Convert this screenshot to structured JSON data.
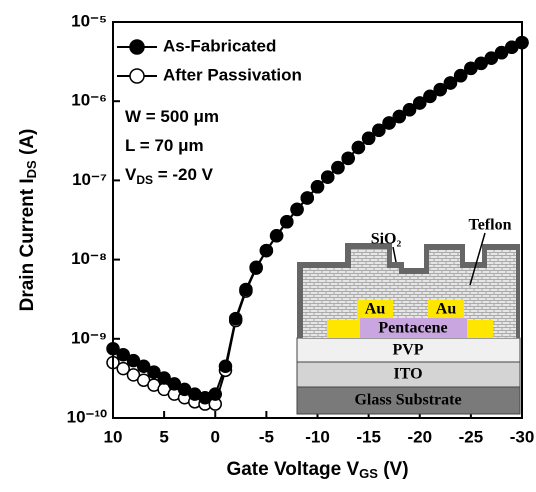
{
  "chart_data": {
    "type": "line",
    "y_label": [
      "Drain Current I",
      "DS",
      " (A)"
    ],
    "x_label": [
      "Gate Voltage V",
      "GS",
      " (V)"
    ],
    "annotations": [
      [
        "W = 500 μm"
      ],
      [
        "L = 70 μm"
      ],
      [
        "V",
        "DS",
        " = -20 V"
      ]
    ],
    "log_y": true,
    "x": [
      10,
      9,
      8,
      7,
      6,
      5,
      4,
      3,
      2,
      1,
      0,
      -1,
      -2,
      -3,
      -4,
      -5,
      -6,
      -7,
      -8,
      -9,
      -10,
      -11,
      -12,
      -13,
      -14,
      -15,
      -16,
      -17,
      -18,
      -19,
      -20,
      -21,
      -22,
      -23,
      -24,
      -25,
      -26,
      -27,
      -28,
      -29,
      -30
    ],
    "series": [
      {
        "name": "As-Fabricated",
        "color": "#000000",
        "marker_fill": "#000000",
        "values": [
          7.5e-10,
          6.3e-10,
          5.3e-10,
          4.5e-10,
          3.8e-10,
          3.2e-10,
          2.7e-10,
          2.3e-10,
          2e-10,
          1.8e-10,
          2e-10,
          4.5e-10,
          1.8e-09,
          4.2e-09,
          8e-09,
          1.3e-08,
          2e-08,
          3e-08,
          4.3e-08,
          6e-08,
          8.3e-08,
          1.1e-07,
          1.45e-07,
          1.9e-07,
          2.6e-07,
          3.4e-07,
          4.3e-07,
          5.3e-07,
          6.4e-07,
          7.8e-07,
          9.5e-07,
          1.15e-06,
          1.4e-06,
          1.7e-06,
          2.1e-06,
          2.6e-06,
          3e-06,
          3.5e-06,
          4.1e-06,
          4.8e-06,
          5.5e-06
        ]
      },
      {
        "name": "After Passivation",
        "color": "#000000",
        "marker_fill": "#ffffff",
        "values": [
          5e-10,
          4.2e-10,
          3.5e-10,
          3e-10,
          2.6e-10,
          2.3e-10,
          2e-10,
          1.8e-10,
          1.6e-10,
          1.5e-10,
          1.5e-10,
          4e-10,
          1.7e-09,
          4e-09,
          7.8e-09,
          1.3e-08,
          2e-08,
          3e-08,
          4.3e-08,
          6e-08,
          8.3e-08,
          1.1e-07,
          1.45e-07,
          1.9e-07,
          2.6e-07,
          3.4e-07,
          4.3e-07,
          5.3e-07,
          6.4e-07,
          7.8e-07,
          9.5e-07,
          1.15e-06,
          1.4e-06,
          1.7e-06,
          2.1e-06,
          2.6e-06,
          3e-06,
          3.5e-06,
          4.1e-06,
          4.8e-06,
          5.5e-06
        ]
      }
    ],
    "xlim": [
      10,
      -30
    ],
    "xticks": [
      10,
      5,
      0,
      -5,
      -10,
      -15,
      -20,
      -25,
      -30
    ],
    "ylim": [
      1e-10,
      1e-05
    ],
    "yticks": [
      {
        "value": 1e-10,
        "label": "10⁻¹⁰"
      },
      {
        "value": 1e-09,
        "label": "10⁻⁹"
      },
      {
        "value": 1e-08,
        "label": "10⁻⁸"
      },
      {
        "value": 1e-07,
        "label": "10⁻⁷"
      },
      {
        "value": 1e-06,
        "label": "10⁻⁶"
      },
      {
        "value": 1e-05,
        "label": "10⁻⁵"
      }
    ],
    "legend": "top-left",
    "inset": {
      "layers": [
        "SiO₂",
        "Teflon",
        "Au",
        "Au",
        "Pentacene",
        "PVP",
        "ITO",
        "Glass Substrate"
      ]
    }
  }
}
